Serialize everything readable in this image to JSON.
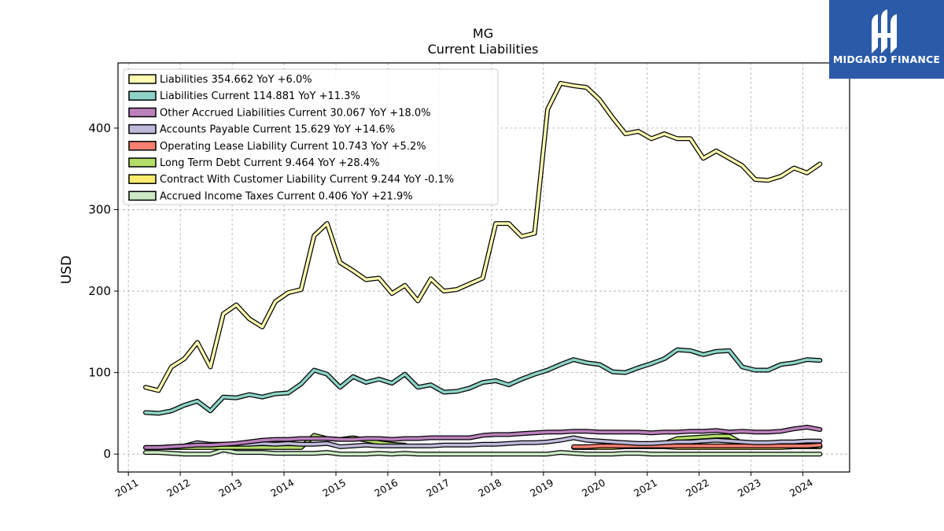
{
  "brand": {
    "name": "MIDGARD FINANCE",
    "color": "#2a5aa8"
  },
  "chart_data": {
    "type": "line",
    "title": "MG",
    "subtitle": "Current  Liabilities",
    "ylabel": "USD",
    "xlabel": "",
    "ylim": [
      -22,
      480
    ],
    "xlim": [
      2010.8,
      2024.9
    ],
    "yticks": [
      0,
      100,
      200,
      300,
      400
    ],
    "xticks": [
      2011,
      2012,
      2013,
      2014,
      2015,
      2016,
      2017,
      2018,
      2019,
      2020,
      2021,
      2022,
      2023,
      2024
    ],
    "grid": true,
    "legend_position": "top-left",
    "x": [
      2011.33,
      2011.58,
      2011.83,
      2012.08,
      2012.33,
      2012.58,
      2012.83,
      2013.08,
      2013.33,
      2013.58,
      2013.83,
      2014.08,
      2014.33,
      2014.58,
      2014.83,
      2015.08,
      2015.33,
      2015.58,
      2015.83,
      2016.08,
      2016.33,
      2016.58,
      2016.83,
      2017.08,
      2017.33,
      2017.58,
      2017.83,
      2018.08,
      2018.33,
      2018.58,
      2018.83,
      2019.08,
      2019.33,
      2019.58,
      2019.83,
      2020.08,
      2020.33,
      2020.58,
      2020.83,
      2021.08,
      2021.33,
      2021.58,
      2021.83,
      2022.08,
      2022.33,
      2022.58,
      2022.83,
      2023.08,
      2023.33,
      2023.58,
      2023.83,
      2024.08,
      2024.33
    ],
    "series": [
      {
        "name": "Liabilities  354.662 YoY +6.0%",
        "color": "#ffffb3",
        "values": [
          82,
          78,
          107,
          117,
          137,
          107,
          172,
          183,
          166,
          156,
          187,
          198,
          202,
          268,
          283,
          235,
          225,
          214,
          216,
          197,
          207,
          188,
          215,
          200,
          202,
          209,
          216,
          283,
          283,
          267,
          271,
          423,
          455,
          452,
          450,
          435,
          413,
          393,
          396,
          387,
          393,
          387,
          387,
          363,
          372,
          363,
          354,
          337,
          336,
          341,
          351,
          345,
          356
        ]
      },
      {
        "name": "Liabilities Current  114.881 YoY +11.3%",
        "color": "#8dd3c7",
        "values": [
          51,
          50,
          53,
          60,
          65,
          53,
          70,
          69,
          73,
          70,
          74,
          75,
          86,
          103,
          98,
          82,
          95,
          88,
          92,
          87,
          98,
          82,
          85,
          76,
          77,
          81,
          88,
          90,
          85,
          92,
          98,
          103,
          110,
          116,
          112,
          110,
          101,
          100,
          106,
          111,
          117,
          128,
          127,
          122,
          126,
          127,
          107,
          103,
          103,
          110,
          112,
          116,
          115
        ]
      },
      {
        "name": "Other Accrued Liabilities Current  30.067 YoY +18.0%",
        "color": "#bc80bd",
        "values": [
          8,
          8,
          9,
          10,
          11,
          11,
          12,
          13,
          15,
          17,
          18,
          18,
          19,
          19,
          19,
          18,
          18,
          19,
          19,
          18,
          19,
          19,
          20,
          20,
          20,
          20,
          23,
          24,
          24,
          25,
          26,
          27,
          27,
          28,
          28,
          27,
          27,
          27,
          27,
          26,
          27,
          27,
          28,
          28,
          29,
          27,
          28,
          27,
          27,
          28,
          31,
          33,
          30
        ]
      },
      {
        "name": "Accounts Payable Current  15.629 YoY +14.6%",
        "color": "#bebada",
        "values": [
          8,
          8,
          9,
          10,
          14,
          12,
          12,
          12,
          12,
          13,
          12,
          13,
          12,
          12,
          13,
          9,
          10,
          11,
          10,
          10,
          10,
          10,
          10,
          11,
          11,
          11,
          12,
          12,
          13,
          14,
          14,
          15,
          17,
          20,
          17,
          16,
          15,
          14,
          13,
          13,
          14,
          15,
          15,
          16,
          17,
          16,
          15,
          14,
          14,
          15,
          15,
          16,
          16
        ]
      },
      {
        "name": "Operating Lease Liability Current  10.743 YoY +5.2%",
        "color": "#fb8072",
        "values": [
          null,
          null,
          null,
          null,
          null,
          null,
          null,
          null,
          null,
          null,
          null,
          null,
          null,
          null,
          null,
          null,
          null,
          null,
          null,
          null,
          null,
          null,
          null,
          null,
          null,
          null,
          null,
          null,
          null,
          null,
          null,
          null,
          null,
          9,
          9,
          10,
          10,
          10,
          10,
          10,
          10,
          10,
          10,
          10,
          10,
          10,
          10,
          10,
          10,
          10,
          10,
          10,
          11
        ]
      },
      {
        "name": "Long Term Debt Current  9.464 YoY +28.4%",
        "color": "#b3de69",
        "values": [
          8,
          8,
          8,
          8,
          8,
          8,
          8,
          8,
          8,
          8,
          8,
          8,
          8,
          23,
          19,
          18,
          20,
          17,
          14,
          12,
          11,
          null,
          null,
          null,
          null,
          null,
          null,
          null,
          null,
          null,
          null,
          null,
          null,
          null,
          null,
          null,
          null,
          null,
          null,
          12,
          13,
          19,
          20,
          21,
          22,
          22,
          13,
          12,
          12,
          12,
          12,
          11,
          9
        ]
      },
      {
        "name": "Contract With Customer Liability Current  9.244 YoY -0.1%",
        "color": "#ffed6f",
        "values": [
          null,
          null,
          null,
          null,
          null,
          null,
          null,
          null,
          null,
          null,
          null,
          null,
          null,
          null,
          null,
          null,
          null,
          null,
          null,
          null,
          null,
          null,
          null,
          null,
          null,
          null,
          null,
          null,
          null,
          null,
          null,
          null,
          null,
          8,
          8,
          8,
          8,
          9,
          9,
          9,
          9,
          8,
          8,
          8,
          8,
          8,
          8,
          8,
          8,
          8,
          9,
          9,
          9
        ]
      },
      {
        "name": "Accrued Income Taxes Current  0.406 YoY +21.9%",
        "color": "#ccebc5",
        "values": [
          2,
          2,
          1,
          0,
          0,
          0,
          5,
          2,
          2,
          2,
          1,
          1,
          1,
          1,
          2,
          0,
          0,
          0,
          1,
          0,
          1,
          0,
          0,
          0,
          0,
          0,
          0,
          0,
          0,
          0,
          0,
          0,
          2,
          1,
          0,
          0,
          0,
          1,
          1,
          0,
          0,
          0,
          0,
          0,
          0,
          0,
          0,
          0,
          0,
          0,
          0,
          0,
          0
        ]
      }
    ]
  }
}
